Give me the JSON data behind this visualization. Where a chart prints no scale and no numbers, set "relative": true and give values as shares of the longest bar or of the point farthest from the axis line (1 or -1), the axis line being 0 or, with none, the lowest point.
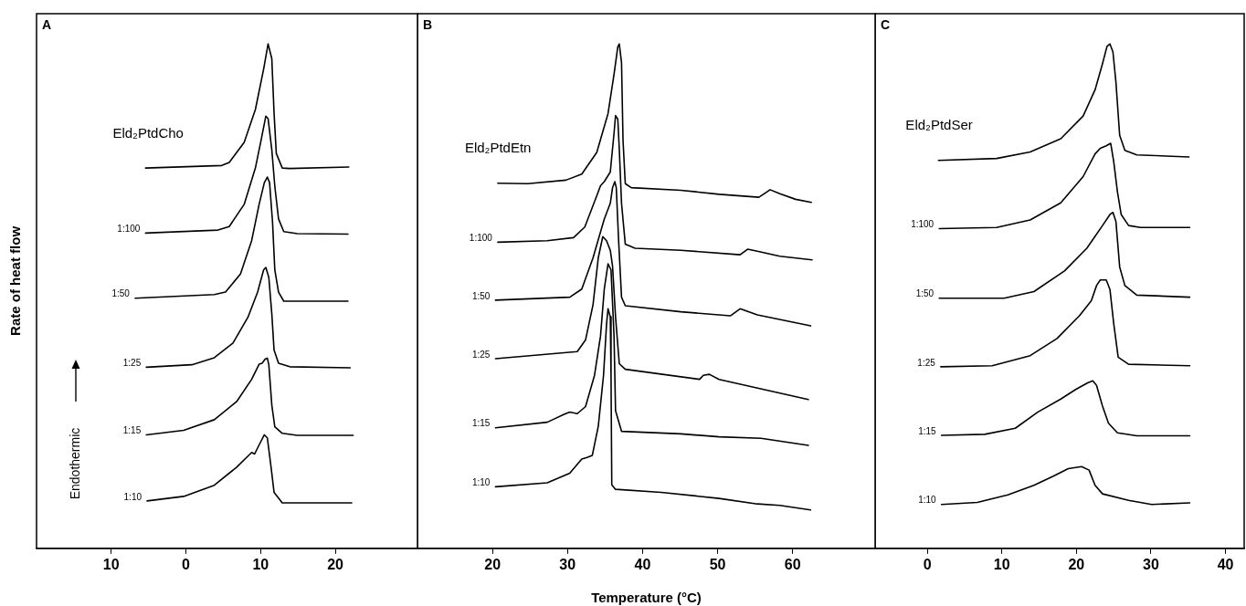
{
  "chart_data": [
    {
      "type": "line",
      "title": "A",
      "ylabel": "Rate of heat flow",
      "annotations": [
        "Endothermic"
      ],
      "relative": true,
      "marker": "none",
      "xlim": [
        -20,
        31
      ],
      "xticks": [
        {
          "value": -10,
          "label": "10"
        },
        0,
        10,
        20
      ],
      "series": [
        {
          "name": "Eld₂PtdCho",
          "color": "#000000",
          "x": [
            -5.4,
            4.8,
            5.8,
            7.8,
            9.3,
            10.4,
            11.0,
            11.5,
            11.8,
            12.1,
            12.9,
            13.9,
            21.8
          ],
          "values": [
            0.754,
            0.759,
            0.765,
            0.805,
            0.87,
            0.95,
            1.0,
            0.971,
            0.863,
            0.783,
            0.754,
            0.753,
            0.756
          ]
        },
        {
          "name": "1:100",
          "color": "#000000",
          "x": [
            -5.4,
            4.3,
            5.8,
            7.8,
            9.3,
            10.1,
            10.7,
            11.0,
            11.5,
            11.9,
            12.4,
            13.1,
            14.9,
            21.7
          ],
          "values": [
            0.625,
            0.631,
            0.638,
            0.682,
            0.754,
            0.812,
            0.857,
            0.852,
            0.79,
            0.718,
            0.653,
            0.628,
            0.624,
            0.623
          ]
        },
        {
          "name": "1:50",
          "color": "#000000",
          "x": [
            -6.8,
            3.8,
            5.3,
            7.3,
            8.8,
            9.8,
            10.5,
            10.9,
            11.2,
            11.6,
            11.9,
            12.4,
            13.1,
            21.7
          ],
          "values": [
            0.496,
            0.503,
            0.508,
            0.544,
            0.61,
            0.682,
            0.725,
            0.736,
            0.725,
            0.646,
            0.552,
            0.508,
            0.49,
            0.49
          ]
        },
        {
          "name": "1:25",
          "color": "#000000",
          "x": [
            -5.3,
            0.8,
            3.8,
            6.3,
            8.3,
            9.6,
            10.4,
            10.7,
            11.1,
            11.5,
            11.8,
            12.4,
            13.9,
            22.0
          ],
          "values": [
            0.359,
            0.364,
            0.378,
            0.407,
            0.458,
            0.508,
            0.552,
            0.557,
            0.537,
            0.465,
            0.393,
            0.367,
            0.36,
            0.358
          ]
        },
        {
          "name": "1:15",
          "color": "#000000",
          "x": [
            -5.3,
            -0.3,
            3.8,
            6.8,
            8.8,
            9.8,
            10.2,
            10.6,
            10.9,
            11.1,
            11.5,
            11.9,
            12.9,
            14.9,
            22.4
          ],
          "values": [
            0.225,
            0.234,
            0.255,
            0.291,
            0.335,
            0.365,
            0.367,
            0.375,
            0.377,
            0.364,
            0.284,
            0.241,
            0.228,
            0.224,
            0.224
          ]
        },
        {
          "name": "1:10",
          "color": "#000000",
          "x": [
            -5.2,
            -0.3,
            3.8,
            6.8,
            8.8,
            9.2,
            9.8,
            10.5,
            10.9,
            11.4,
            11.8,
            12.9,
            22.2
          ],
          "values": [
            0.094,
            0.103,
            0.125,
            0.161,
            0.19,
            0.187,
            0.205,
            0.225,
            0.219,
            0.161,
            0.111,
            0.09,
            0.09
          ]
        }
      ]
    },
    {
      "type": "line",
      "title": "B",
      "xlabel": "Temperature (°C)",
      "relative": true,
      "marker": "none",
      "xlim": [
        10,
        71
      ],
      "xticks": [
        20,
        30,
        40,
        50,
        60
      ],
      "series": [
        {
          "name": "Eld₂PtdEtn",
          "color": "#000000",
          "x": [
            20.7,
            24.7,
            29.8,
            31.9,
            33.9,
            35.4,
            36.2,
            36.7,
            36.9,
            37.2,
            37.4,
            37.7,
            38.5,
            45.1,
            50.2,
            55.5,
            56.2,
            57.0,
            58.3,
            60.4,
            62.5
          ],
          "values": [
            0.724,
            0.723,
            0.73,
            0.742,
            0.785,
            0.862,
            0.94,
            0.994,
            1.0,
            0.963,
            0.808,
            0.723,
            0.715,
            0.71,
            0.702,
            0.696,
            0.703,
            0.711,
            0.703,
            0.692,
            0.686
          ]
        },
        {
          "name": "1:100",
          "color": "#000000",
          "x": [
            20.7,
            27.3,
            30.8,
            32.3,
            33.9,
            34.4,
            34.9,
            35.7,
            36.2,
            36.4,
            36.7,
            36.9,
            37.2,
            37.7,
            39.0,
            45.1,
            53.0,
            54.0,
            55.3,
            58.3,
            62.6
          ],
          "values": [
            0.607,
            0.61,
            0.616,
            0.637,
            0.699,
            0.719,
            0.727,
            0.746,
            0.823,
            0.858,
            0.851,
            0.792,
            0.684,
            0.603,
            0.595,
            0.591,
            0.582,
            0.593,
            0.589,
            0.579,
            0.572
          ]
        },
        {
          "name": "1:50",
          "color": "#000000",
          "x": [
            20.4,
            30.3,
            31.9,
            33.4,
            34.9,
            35.7,
            36.0,
            36.3,
            36.5,
            36.8,
            37.2,
            37.7,
            45.1,
            51.7,
            53.0,
            55.3,
            62.4
          ],
          "values": [
            0.492,
            0.498,
            0.514,
            0.576,
            0.653,
            0.684,
            0.715,
            0.727,
            0.715,
            0.614,
            0.498,
            0.481,
            0.469,
            0.461,
            0.475,
            0.463,
            0.441
          ]
        },
        {
          "name": "1:25",
          "color": "#000000",
          "x": [
            20.4,
            31.3,
            32.4,
            33.4,
            34.1,
            34.7,
            35.2,
            35.7,
            36.0,
            36.4,
            36.9,
            37.7,
            47.6,
            48.1,
            48.9,
            50.2,
            62.1
          ],
          "values": [
            0.376,
            0.39,
            0.413,
            0.483,
            0.576,
            0.618,
            0.61,
            0.591,
            0.56,
            0.459,
            0.366,
            0.355,
            0.335,
            0.343,
            0.345,
            0.335,
            0.295
          ]
        },
        {
          "name": "1:15",
          "color": "#000000",
          "x": [
            20.4,
            27.3,
            29.6,
            30.3,
            31.3,
            32.4,
            33.6,
            34.4,
            34.9,
            35.4,
            35.8,
            36.2,
            36.4,
            37.2,
            45.1,
            50.2,
            55.8,
            62.1
          ],
          "values": [
            0.239,
            0.25,
            0.266,
            0.27,
            0.267,
            0.281,
            0.343,
            0.421,
            0.514,
            0.564,
            0.552,
            0.421,
            0.273,
            0.232,
            0.227,
            0.221,
            0.218,
            0.204
          ]
        },
        {
          "name": "1:10",
          "color": "#000000",
          "x": [
            20.4,
            27.3,
            30.3,
            31.9,
            32.6,
            33.3,
            34.1,
            34.8,
            35.2,
            35.4,
            35.7,
            35.8,
            35.9,
            36.4,
            42.5,
            50.2,
            55.3,
            58.3,
            62.4
          ],
          "values": [
            0.122,
            0.13,
            0.149,
            0.177,
            0.18,
            0.184,
            0.242,
            0.343,
            0.444,
            0.475,
            0.459,
            0.343,
            0.126,
            0.117,
            0.111,
            0.099,
            0.088,
            0.085,
            0.076
          ]
        }
      ]
    },
    {
      "type": "line",
      "title": "C",
      "relative": true,
      "marker": "none",
      "xlim": [
        -7,
        42.5
      ],
      "xticks": [
        0,
        10,
        20,
        30,
        40
      ],
      "series": [
        {
          "name": "Eld₂PtdSer",
          "color": "#000000",
          "x": [
            1.5,
            9.3,
            13.8,
            17.9,
            20.9,
            22.5,
            23.5,
            24.1,
            24.5,
            24.9,
            25.3,
            25.8,
            26.5,
            28.1,
            35.1
          ],
          "values": [
            0.769,
            0.773,
            0.786,
            0.812,
            0.857,
            0.909,
            0.961,
            0.995,
            1.0,
            0.984,
            0.924,
            0.819,
            0.789,
            0.78,
            0.776
          ]
        },
        {
          "name": "1:100",
          "color": "#000000",
          "x": [
            1.6,
            9.3,
            13.8,
            17.9,
            20.9,
            22.5,
            23.2,
            24.0,
            24.6,
            25.0,
            25.5,
            26.0,
            27.0,
            28.6,
            35.2
          ],
          "values": [
            0.634,
            0.636,
            0.651,
            0.685,
            0.737,
            0.782,
            0.793,
            0.798,
            0.803,
            0.767,
            0.707,
            0.662,
            0.64,
            0.636,
            0.636
          ]
        },
        {
          "name": "1:50",
          "color": "#000000",
          "x": [
            1.6,
            10.3,
            14.3,
            18.4,
            21.4,
            23.5,
            24.5,
            24.9,
            25.3,
            25.8,
            26.5,
            28.1,
            35.2
          ],
          "values": [
            0.496,
            0.496,
            0.509,
            0.55,
            0.595,
            0.64,
            0.662,
            0.666,
            0.648,
            0.558,
            0.521,
            0.502,
            0.498
          ]
        },
        {
          "name": "1:25",
          "color": "#000000",
          "x": [
            1.8,
            8.7,
            13.8,
            17.4,
            20.4,
            22.0,
            22.7,
            23.2,
            24.0,
            24.5,
            25.0,
            25.6,
            27.0,
            35.2
          ],
          "values": [
            0.36,
            0.362,
            0.382,
            0.416,
            0.461,
            0.491,
            0.521,
            0.532,
            0.532,
            0.513,
            0.446,
            0.379,
            0.365,
            0.362
          ]
        },
        {
          "name": "1:15",
          "color": "#000000",
          "x": [
            1.9,
            7.7,
            11.8,
            14.8,
            17.9,
            19.9,
            21.5,
            22.2,
            22.7,
            23.5,
            24.3,
            25.5,
            28.1,
            35.2
          ],
          "values": [
            0.224,
            0.226,
            0.238,
            0.27,
            0.296,
            0.315,
            0.328,
            0.332,
            0.323,
            0.282,
            0.248,
            0.229,
            0.223,
            0.223
          ]
        },
        {
          "name": "1:10",
          "color": "#000000",
          "x": [
            1.9,
            6.7,
            10.8,
            14.3,
            16.9,
            18.9,
            20.7,
            21.7,
            22.5,
            23.5,
            27.0,
            30.1,
            35.2
          ],
          "values": [
            0.087,
            0.091,
            0.106,
            0.125,
            0.143,
            0.158,
            0.162,
            0.155,
            0.125,
            0.108,
            0.095,
            0.087,
            0.09
          ]
        }
      ]
    }
  ]
}
